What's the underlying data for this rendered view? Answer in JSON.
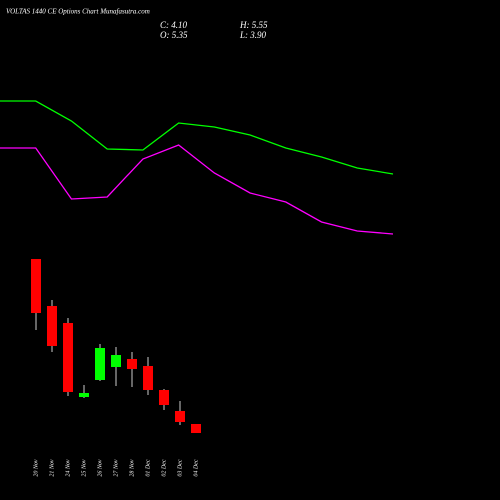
{
  "chart_data": [
    {
      "type": "line",
      "title": "VOLTAS 1440 CE Options Chart Munafasutra.com",
      "info": [
        "C: 4.10",
        "H: 5.55",
        "O: 5.35",
        "L: 3.90"
      ],
      "ylim": [
        0,
        100
      ],
      "series": [
        {
          "color": "#00ff00",
          "values": [
            74.5,
            74.5,
            64.5,
            50.5,
            50,
            63.5,
            61.5,
            57.5,
            51,
            46.5,
            41,
            38
          ]
        },
        {
          "color": "#ff00ff",
          "values": [
            51,
            51,
            25.5,
            26.5,
            45.5,
            52.5,
            38.5,
            28.5,
            24,
            14,
            9.5,
            8
          ]
        }
      ]
    },
    {
      "type": "candlestick",
      "categories": [
        "20 Nov",
        "21 Nov",
        "24 Nov",
        "25 Nov",
        "26 Nov",
        "27 Nov",
        "28 Nov",
        "01 Dec",
        "02 Dec",
        "03 Dec",
        "04 Dec"
      ],
      "open": [
        38.2,
        28.8,
        25.4,
        10.6,
        14,
        16.6,
        18.2,
        16.8,
        12,
        7.8,
        5.2
      ],
      "high": [
        38.2,
        30,
        26.4,
        13,
        21.2,
        20.6,
        19.6,
        18.6,
        12.2,
        9.8,
        5.2
      ],
      "low": [
        24,
        19.6,
        10.8,
        10.4,
        13.8,
        12.8,
        12.6,
        11,
        8,
        5,
        3.4
      ],
      "close": [
        27.4,
        20.8,
        11.6,
        11.4,
        20.4,
        19,
        16.2,
        12,
        9,
        5.6,
        3.4
      ],
      "ylim": [
        0,
        50
      ],
      "up_color": "#00ff00",
      "down_color": "#ff0000"
    }
  ]
}
